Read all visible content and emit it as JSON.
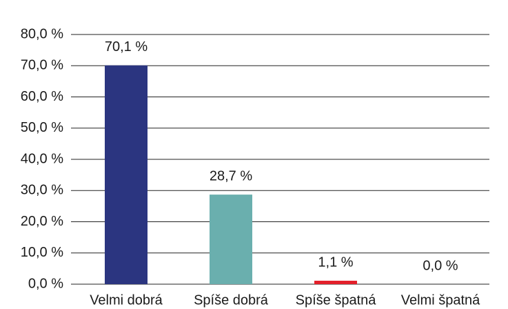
{
  "chart_data": {
    "type": "bar",
    "categories": [
      "Velmi dobrá",
      "Spíše dobrá",
      "Spíše špatná",
      "Velmi špatná"
    ],
    "values": [
      70.1,
      28.7,
      1.1,
      0.0
    ],
    "value_labels": [
      "70,1 %",
      "28,7 %",
      "1,1 %",
      "0,0 %"
    ],
    "colors": [
      "#2b3580",
      "#6aafae",
      "#e3202a",
      "#2b3580"
    ],
    "ylim": [
      0,
      80
    ],
    "yticks": [
      {
        "value": 0,
        "label": "0,0 %"
      },
      {
        "value": 10,
        "label": "10,0 %"
      },
      {
        "value": 20,
        "label": "20,0 %"
      },
      {
        "value": 30,
        "label": "30,0 %"
      },
      {
        "value": 40,
        "label": "40,0 %"
      },
      {
        "value": 50,
        "label": "50,0 %"
      },
      {
        "value": 60,
        "label": "60,0 %"
      },
      {
        "value": 70,
        "label": "70,0 %"
      },
      {
        "value": 80,
        "label": "80,0 %"
      }
    ],
    "grid": true
  }
}
